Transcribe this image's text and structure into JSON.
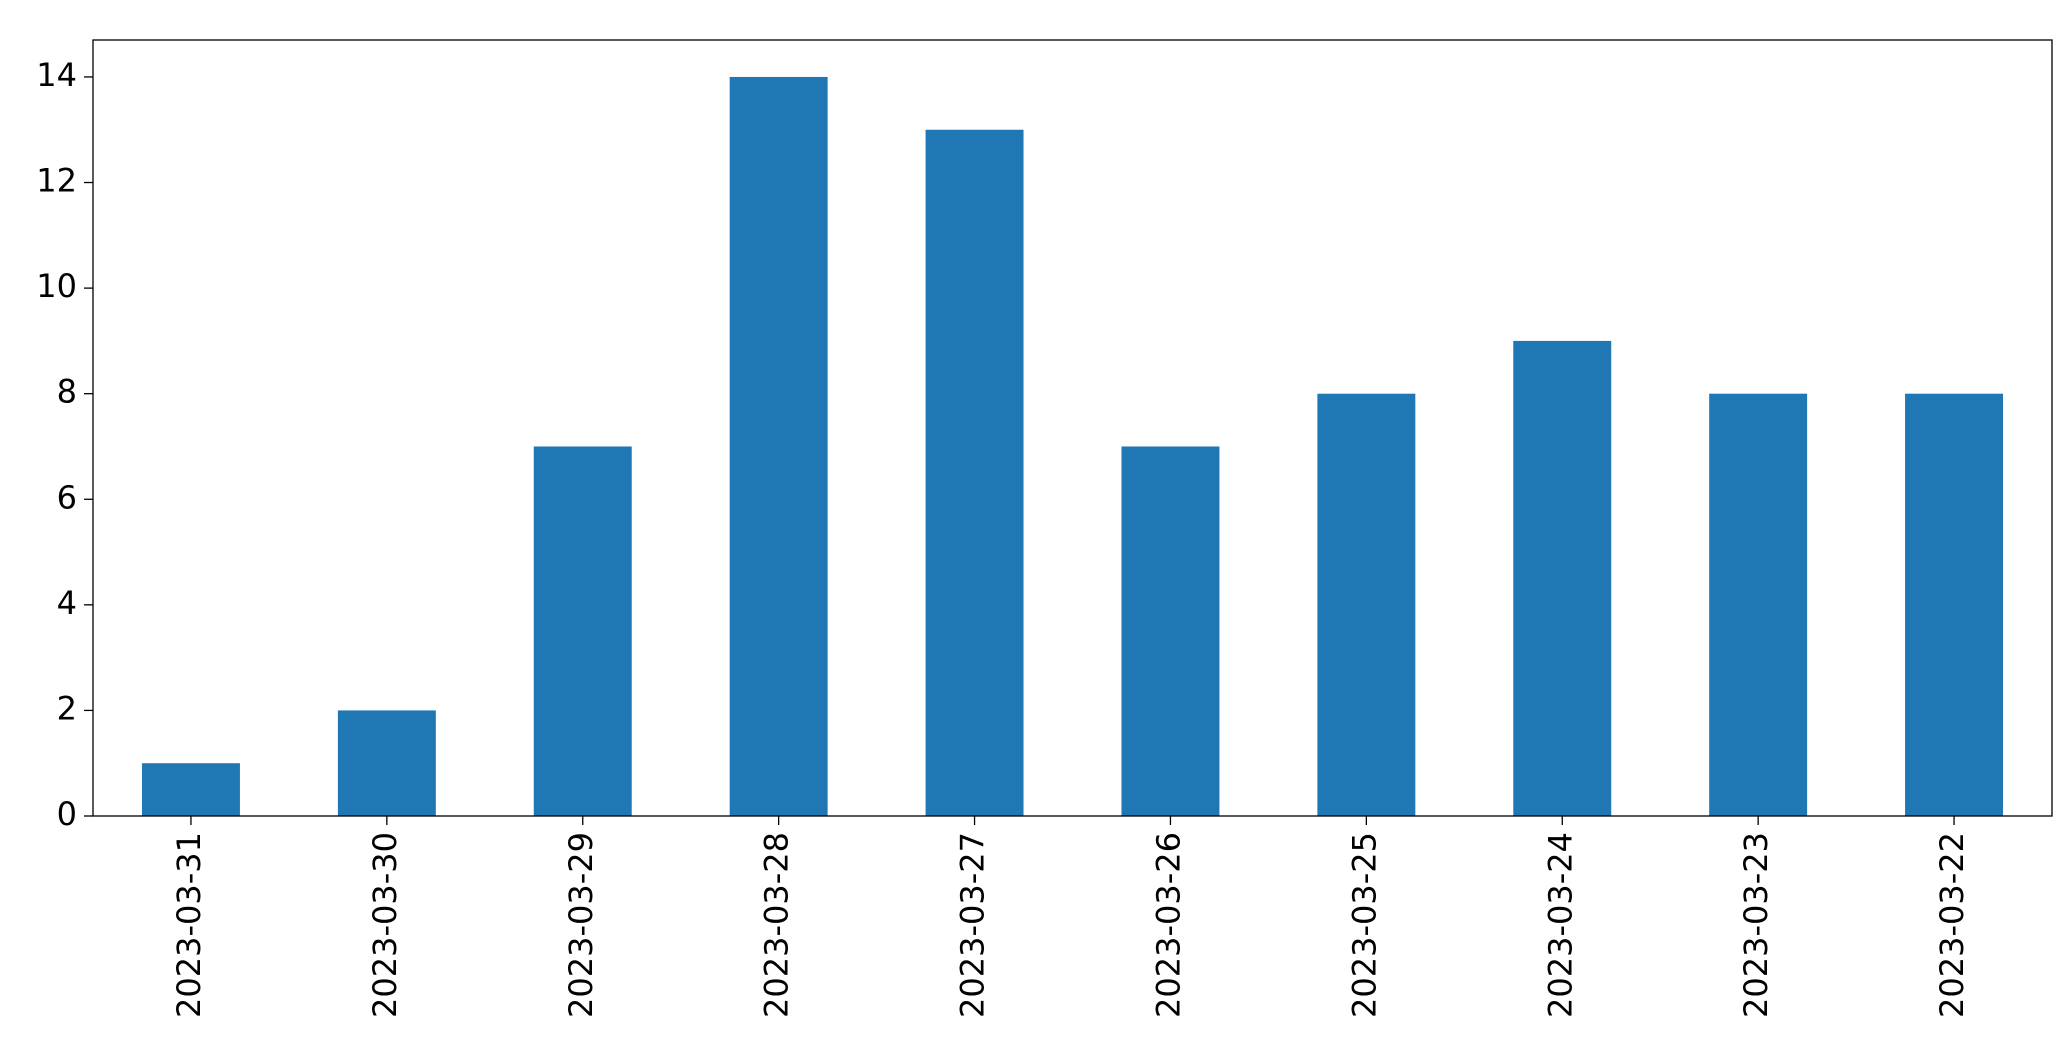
{
  "chart_data": {
    "type": "bar",
    "categories": [
      "2023-03-31",
      "2023-03-30",
      "2023-03-29",
      "2023-03-28",
      "2023-03-27",
      "2023-03-26",
      "2023-03-25",
      "2023-03-24",
      "2023-03-23",
      "2023-03-22"
    ],
    "values": [
      1,
      2,
      7,
      14,
      13,
      7,
      8,
      9,
      8,
      8
    ],
    "color": "#1f77b4",
    "ylim": [
      0,
      14.7
    ],
    "yticks": [
      0,
      2,
      4,
      6,
      8,
      10,
      12,
      14
    ],
    "grid": false
  }
}
